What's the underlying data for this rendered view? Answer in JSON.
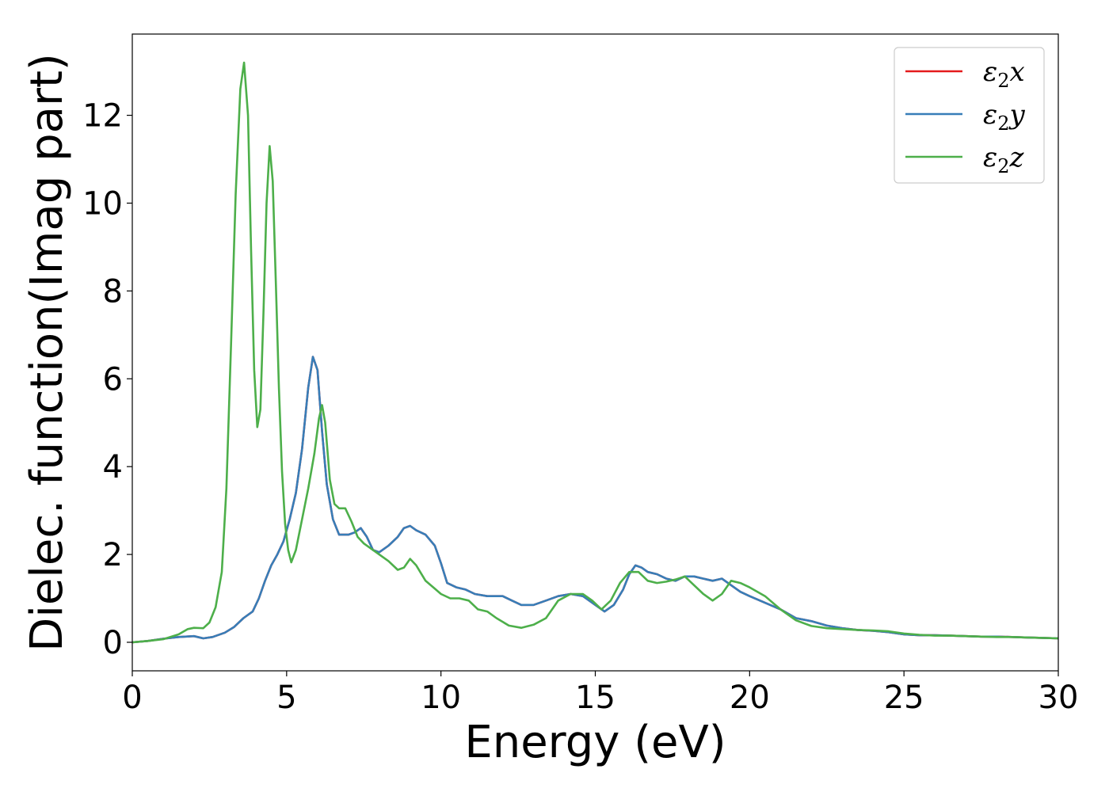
{
  "chart_data": {
    "type": "line",
    "title": "",
    "xlabel": "Energy (eV)",
    "ylabel": "Dielec. function(Imag part)",
    "xlim": [
      0,
      30
    ],
    "ylim": [
      -0.65,
      13.85
    ],
    "xticks": [
      0,
      5,
      10,
      15,
      20,
      25,
      30
    ],
    "yticks": [
      0,
      2,
      4,
      6,
      8,
      10,
      12
    ],
    "grid": false,
    "legend_position": "top-right",
    "series": [
      {
        "name": "x",
        "legend": {
          "base": "ε",
          "sub": "2",
          "suffix": "x"
        },
        "color": "#e41a1c",
        "x": [
          0,
          0.5,
          1,
          1.5,
          2,
          2.3,
          2.6,
          3,
          3.3,
          3.6,
          3.9,
          4.1,
          4.3,
          4.5,
          4.7,
          4.9,
          5.1,
          5.3,
          5.5,
          5.7,
          5.85,
          6,
          6.15,
          6.3,
          6.5,
          6.7,
          7,
          7.2,
          7.4,
          7.6,
          7.8,
          8,
          8.3,
          8.6,
          8.8,
          9,
          9.2,
          9.5,
          9.8,
          10,
          10.2,
          10.5,
          10.8,
          11.1,
          11.5,
          12,
          12.3,
          12.6,
          13,
          13.4,
          13.8,
          14.2,
          14.6,
          15,
          15.3,
          15.6,
          15.9,
          16.1,
          16.3,
          16.5,
          16.7,
          17,
          17.3,
          17.6,
          17.9,
          18.2,
          18.5,
          18.8,
          19.1,
          19.4,
          19.7,
          20,
          20.5,
          21,
          21.5,
          22,
          22.5,
          23,
          23.5,
          24,
          24.5,
          25,
          25.5,
          26,
          26.5,
          27,
          27.5,
          28,
          28.5,
          29,
          29.5,
          30
        ],
        "y": [
          0,
          0.03,
          0.08,
          0.12,
          0.14,
          0.09,
          0.12,
          0.22,
          0.35,
          0.55,
          0.7,
          1,
          1.4,
          1.75,
          2,
          2.3,
          2.8,
          3.4,
          4.4,
          5.8,
          6.5,
          6.2,
          4.8,
          3.6,
          2.8,
          2.45,
          2.45,
          2.5,
          2.6,
          2.4,
          2.1,
          2.05,
          2.2,
          2.4,
          2.6,
          2.65,
          2.55,
          2.45,
          2.2,
          1.8,
          1.35,
          1.25,
          1.2,
          1.1,
          1.05,
          1.05,
          0.95,
          0.85,
          0.85,
          0.95,
          1.05,
          1.1,
          1.05,
          0.85,
          0.7,
          0.85,
          1.2,
          1.55,
          1.75,
          1.7,
          1.6,
          1.55,
          1.45,
          1.4,
          1.5,
          1.5,
          1.45,
          1.4,
          1.45,
          1.3,
          1.15,
          1.05,
          0.9,
          0.75,
          0.55,
          0.48,
          0.38,
          0.32,
          0.28,
          0.26,
          0.23,
          0.18,
          0.16,
          0.16,
          0.15,
          0.14,
          0.13,
          0.13,
          0.12,
          0.11,
          0.1,
          0.09
        ]
      },
      {
        "name": "y",
        "legend": {
          "base": "ε",
          "sub": "2",
          "suffix": "y"
        },
        "color": "#377eb8",
        "x": [
          0,
          0.5,
          1,
          1.5,
          2,
          2.3,
          2.6,
          3,
          3.3,
          3.6,
          3.9,
          4.1,
          4.3,
          4.5,
          4.7,
          4.9,
          5.1,
          5.3,
          5.5,
          5.7,
          5.85,
          6,
          6.15,
          6.3,
          6.5,
          6.7,
          7,
          7.2,
          7.4,
          7.6,
          7.8,
          8,
          8.3,
          8.6,
          8.8,
          9,
          9.2,
          9.5,
          9.8,
          10,
          10.2,
          10.5,
          10.8,
          11.1,
          11.5,
          12,
          12.3,
          12.6,
          13,
          13.4,
          13.8,
          14.2,
          14.6,
          15,
          15.3,
          15.6,
          15.9,
          16.1,
          16.3,
          16.5,
          16.7,
          17,
          17.3,
          17.6,
          17.9,
          18.2,
          18.5,
          18.8,
          19.1,
          19.4,
          19.7,
          20,
          20.5,
          21,
          21.5,
          22,
          22.5,
          23,
          23.5,
          24,
          24.5,
          25,
          25.5,
          26,
          26.5,
          27,
          27.5,
          28,
          28.5,
          29,
          29.5,
          30
        ],
        "y": [
          0,
          0.03,
          0.08,
          0.12,
          0.14,
          0.09,
          0.12,
          0.22,
          0.35,
          0.55,
          0.7,
          1,
          1.4,
          1.75,
          2,
          2.3,
          2.8,
          3.4,
          4.4,
          5.8,
          6.5,
          6.2,
          4.8,
          3.6,
          2.8,
          2.45,
          2.45,
          2.5,
          2.6,
          2.4,
          2.1,
          2.05,
          2.2,
          2.4,
          2.6,
          2.65,
          2.55,
          2.45,
          2.2,
          1.8,
          1.35,
          1.25,
          1.2,
          1.1,
          1.05,
          1.05,
          0.95,
          0.85,
          0.85,
          0.95,
          1.05,
          1.1,
          1.05,
          0.85,
          0.7,
          0.85,
          1.2,
          1.55,
          1.75,
          1.7,
          1.6,
          1.55,
          1.45,
          1.4,
          1.5,
          1.5,
          1.45,
          1.4,
          1.45,
          1.3,
          1.15,
          1.05,
          0.9,
          0.75,
          0.55,
          0.48,
          0.38,
          0.32,
          0.28,
          0.26,
          0.23,
          0.18,
          0.16,
          0.16,
          0.15,
          0.14,
          0.13,
          0.13,
          0.12,
          0.11,
          0.1,
          0.09
        ]
      },
      {
        "name": "z",
        "legend": {
          "base": "ε",
          "sub": "2",
          "suffix": "z"
        },
        "color": "#4daf4a",
        "x": [
          0,
          0.5,
          1,
          1.5,
          1.8,
          2,
          2.3,
          2.5,
          2.7,
          2.9,
          3.05,
          3.2,
          3.35,
          3.5,
          3.62,
          3.75,
          3.85,
          3.95,
          4.05,
          4.15,
          4.25,
          4.35,
          4.45,
          4.55,
          4.65,
          4.75,
          4.85,
          4.95,
          5.05,
          5.15,
          5.3,
          5.5,
          5.7,
          5.9,
          6.05,
          6.15,
          6.25,
          6.4,
          6.55,
          6.7,
          6.9,
          7.1,
          7.3,
          7.5,
          7.7,
          8,
          8.3,
          8.6,
          8.8,
          9,
          9.2,
          9.5,
          9.8,
          10,
          10.3,
          10.6,
          10.9,
          11.2,
          11.5,
          11.8,
          12.2,
          12.6,
          13,
          13.4,
          13.8,
          14.2,
          14.6,
          14.9,
          15.2,
          15.5,
          15.8,
          16.1,
          16.4,
          16.7,
          17,
          17.3,
          17.6,
          17.9,
          18.2,
          18.5,
          18.8,
          19.1,
          19.4,
          19.7,
          20,
          20.5,
          21,
          21.5,
          22,
          22.5,
          23,
          23.5,
          24,
          24.5,
          25,
          25.5,
          26,
          26.5,
          27,
          27.5,
          28,
          28.5,
          29,
          29.5,
          30
        ],
        "y": [
          0,
          0.03,
          0.07,
          0.18,
          0.3,
          0.33,
          0.32,
          0.45,
          0.8,
          1.6,
          3.5,
          6.8,
          10.2,
          12.6,
          13.2,
          12,
          8.9,
          6.2,
          4.9,
          5.3,
          7.5,
          10,
          11.3,
          10.5,
          8.2,
          5.8,
          3.9,
          2.7,
          2.1,
          1.82,
          2.1,
          2.8,
          3.5,
          4.3,
          5.1,
          5.4,
          5,
          3.7,
          3.15,
          3.05,
          3.05,
          2.75,
          2.4,
          2.25,
          2.15,
          2,
          1.85,
          1.65,
          1.7,
          1.9,
          1.75,
          1.4,
          1.22,
          1.1,
          1,
          1,
          0.95,
          0.75,
          0.7,
          0.55,
          0.38,
          0.33,
          0.4,
          0.55,
          0.95,
          1.1,
          1.1,
          0.95,
          0.75,
          0.95,
          1.35,
          1.6,
          1.6,
          1.4,
          1.35,
          1.38,
          1.43,
          1.5,
          1.3,
          1.1,
          0.95,
          1.1,
          1.4,
          1.35,
          1.25,
          1.05,
          0.75,
          0.5,
          0.37,
          0.32,
          0.3,
          0.28,
          0.27,
          0.25,
          0.2,
          0.17,
          0.15,
          0.15,
          0.14,
          0.13,
          0.12,
          0.12,
          0.11,
          0.1,
          0.09
        ]
      }
    ]
  }
}
